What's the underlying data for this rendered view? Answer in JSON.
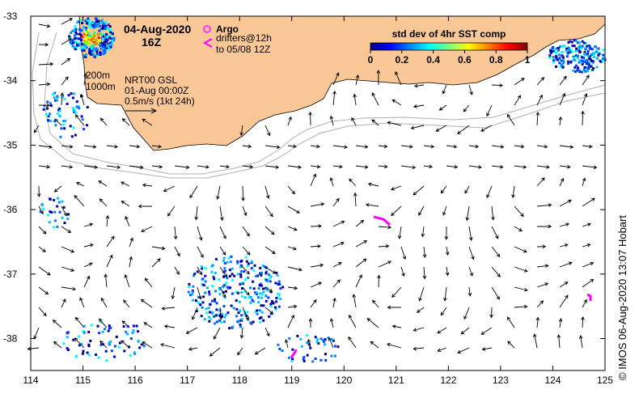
{
  "title": {
    "date": "04-Aug-2020",
    "hour": "16Z"
  },
  "legend": {
    "argo_label": "Argo",
    "drifters_line1": "drifters@12h",
    "drifters_line2": "to 05/08 12Z",
    "argo_symbol_color": "#ff33ff",
    "drifter_color": "#ff00ff"
  },
  "contours_legend": {
    "c200": "200m",
    "c1000": "1000m"
  },
  "model_info": {
    "line1": "NRT00 GSL",
    "line2": "01-Aug 00:00Z",
    "line3": "0.5m/s (1kt 24h)"
  },
  "colorbar": {
    "title": "std dev of 4hr SST comp",
    "ticks": [
      "0",
      "0.2",
      "0.4",
      "0.6",
      "0.8",
      "1"
    ],
    "colors": [
      "#000080",
      "#0000ff",
      "#0080ff",
      "#00ffff",
      "#80ff80",
      "#ffff00",
      "#ff8000",
      "#ff0000",
      "#800000"
    ]
  },
  "axes": {
    "x_ticks": [
      "114",
      "115",
      "116",
      "117",
      "118",
      "119",
      "120",
      "121",
      "122",
      "123",
      "124",
      "125"
    ],
    "y_ticks": [
      "-33",
      "-34",
      "-35",
      "-36",
      "-37",
      "-38"
    ]
  },
  "land_color": "#fac896",
  "credit": "© IMOS 06-Aug-2020 13:07 Hobart"
}
